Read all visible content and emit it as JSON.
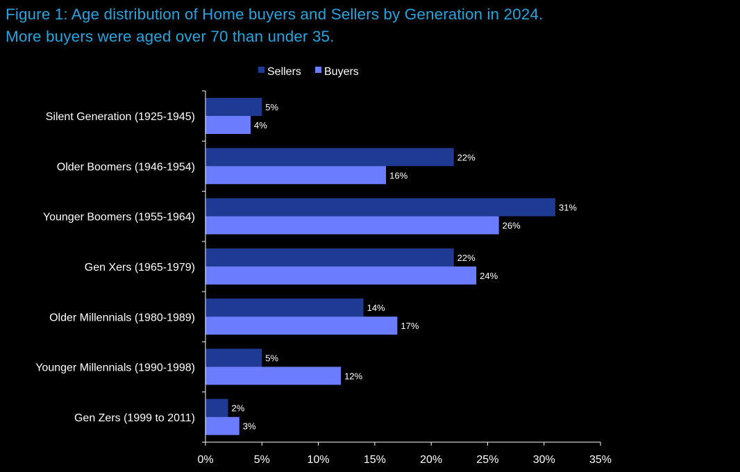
{
  "title": "Figure 1: Age distribution of Home buyers and Sellers by Generation in 2024.",
  "subtitle": "More buyers were aged over 70 than under 35.",
  "colors": {
    "title": "#27a3dd",
    "sellers": "#1f3a93",
    "buyers": "#6b7cff",
    "axis": "#ffffff",
    "background": "#000000"
  },
  "chart_data": {
    "type": "bar",
    "orientation": "horizontal",
    "title": "Figure 1: Age distribution of Home buyers and Sellers by Generation in 2024.",
    "subtitle": "More buyers were aged over 70 than under 35.",
    "categories": [
      "Silent Generation (1925-1945)",
      "Older Boomers (1946-1954)",
      "Younger Boomers (1955-1964)",
      "Gen Xers (1965-1979)",
      "Older Millennials (1980-1989)",
      "Younger Millennials (1990-1998)",
      "Gen Zers (1999 to 2011)"
    ],
    "series": [
      {
        "name": "Sellers",
        "values": [
          5,
          22,
          31,
          22,
          14,
          5,
          2
        ],
        "labels": [
          "5%",
          "22%",
          "31%",
          "22%",
          "14%",
          "5%",
          "2%"
        ]
      },
      {
        "name": "Buyers",
        "values": [
          4,
          16,
          26,
          24,
          17,
          12,
          3
        ],
        "labels": [
          "4%",
          "16%",
          "26%",
          "24%",
          "17%",
          "12%",
          "3%"
        ]
      }
    ],
    "xlim": [
      0,
      35
    ],
    "xticks": [
      0,
      5,
      10,
      15,
      20,
      25,
      30,
      35
    ],
    "xtick_labels": [
      "0%",
      "5%",
      "10%",
      "15%",
      "20%",
      "25%",
      "30%",
      "35%"
    ],
    "xlabel": "",
    "ylabel": "",
    "grid": false,
    "legend": {
      "position": "top",
      "entries": [
        "Sellers",
        "Buyers"
      ]
    }
  }
}
